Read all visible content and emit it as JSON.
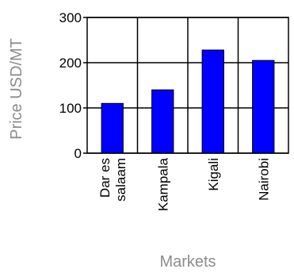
{
  "chart_data": {
    "type": "bar",
    "title": "",
    "xlabel": "Markets",
    "ylabel": "Price USD/MT",
    "categories": [
      [
        "Dar es",
        "salaam"
      ],
      [
        "Kampala"
      ],
      [
        "Kigali"
      ],
      [
        "Nairobi"
      ]
    ],
    "series": [
      {
        "values": [
          110,
          140,
          228,
          205
        ]
      }
    ],
    "ylim": [
      0,
      300
    ],
    "yticks": [
      0,
      100,
      200,
      300
    ],
    "grid": true,
    "legend": "none",
    "colors": {
      "bar": "#0000ff",
      "bar_outline": "#000000",
      "gridline": "#000000",
      "axis_title": "#8c8c8c"
    }
  }
}
